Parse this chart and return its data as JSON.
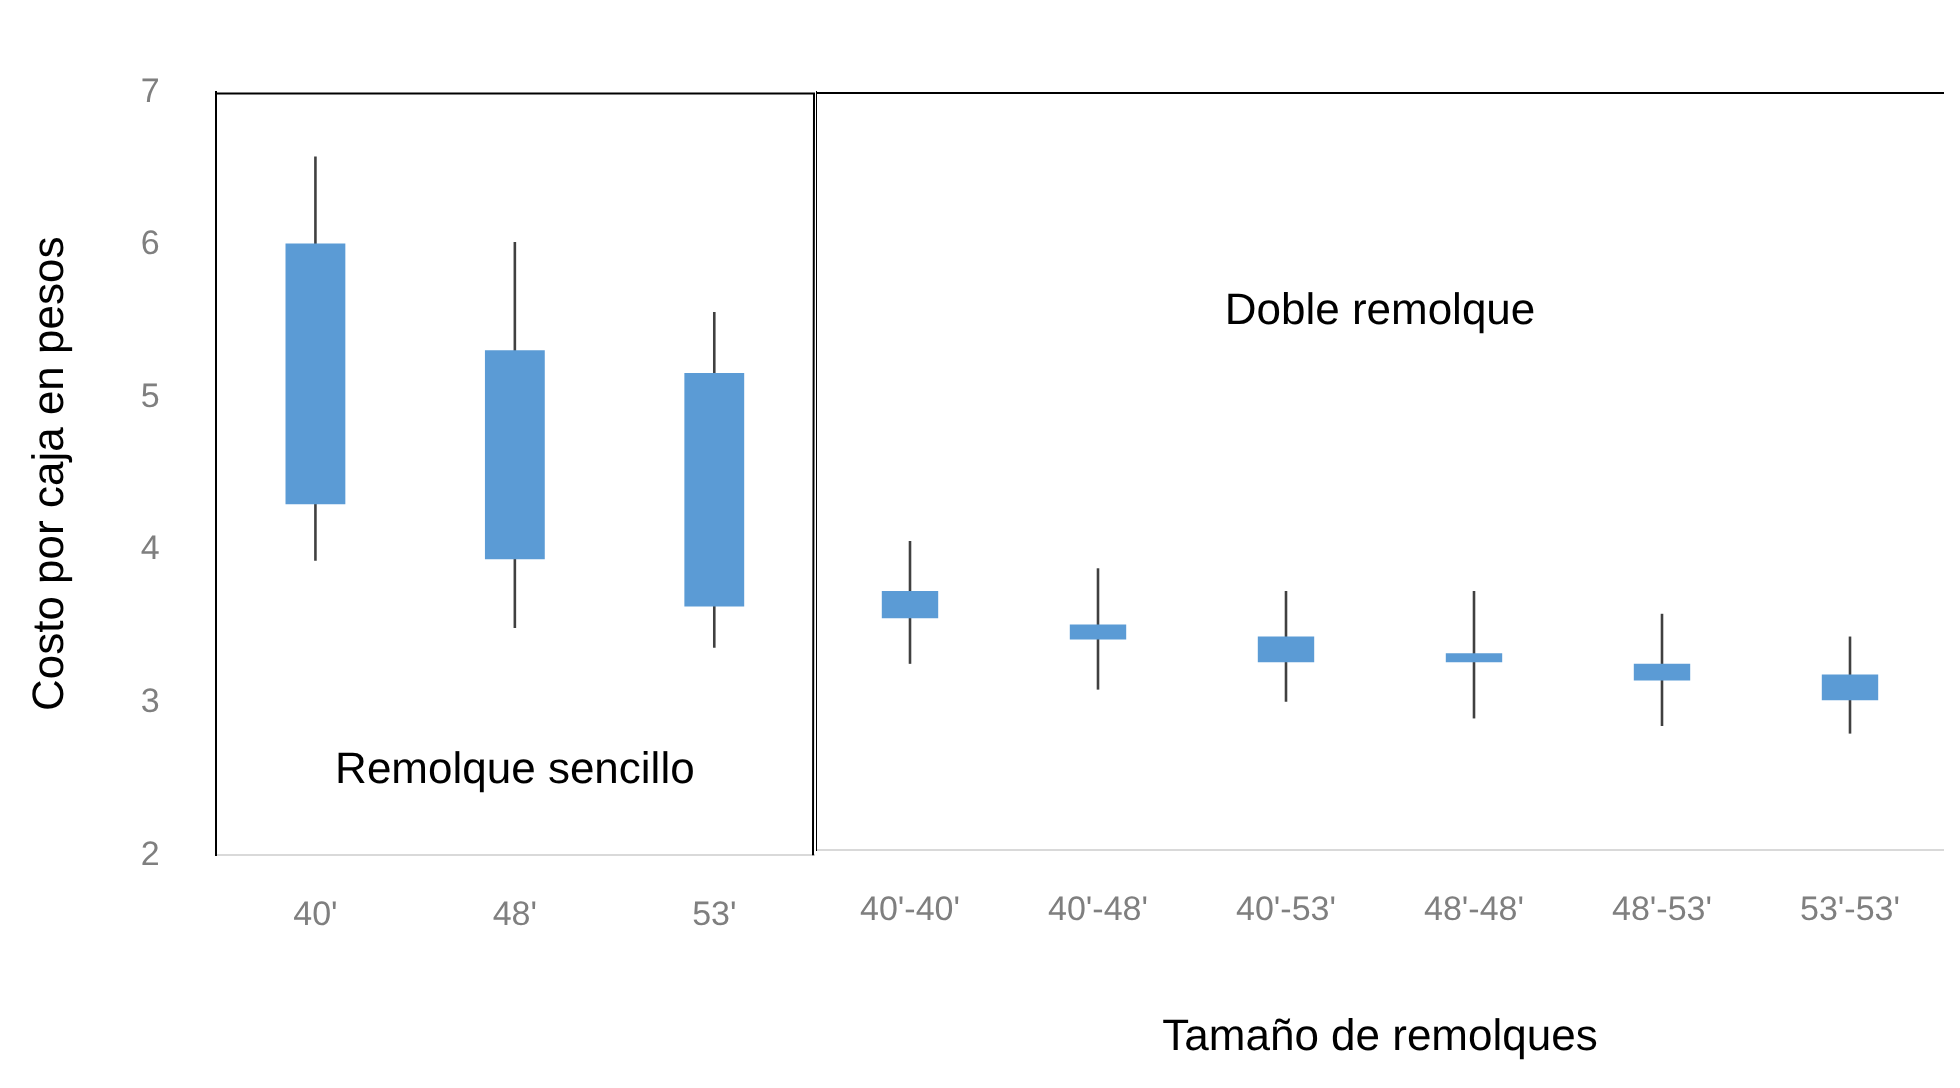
{
  "chart_data": [
    {
      "type": "candlestick",
      "ylabel": "Costo por caja en pesos",
      "categories": [
        "40'",
        "48'",
        "53'"
      ],
      "ohlc": [
        [
          4.3,
          6.58,
          3.93,
          6.01
        ],
        [
          3.94,
          6.02,
          3.49,
          5.31
        ],
        [
          3.63,
          5.56,
          3.36,
          5.16
        ]
      ],
      "color": "#5b9bd5",
      "ylim": [
        2,
        7
      ],
      "yticks": [
        2,
        3,
        4,
        5,
        6,
        7
      ],
      "grid": false,
      "legend": false,
      "annotations": [
        "Remolque sencillo"
      ]
    },
    {
      "type": "candlestick",
      "xlabel": "Tamaño de remolques",
      "categories": [
        "40'-40'",
        "40'-48'",
        "40'-53'",
        "48'-48'",
        "48'-53'",
        "53'-53'"
      ],
      "ohlc": [
        [
          3.53,
          4.04,
          3.23,
          3.71
        ],
        [
          3.39,
          3.86,
          3.06,
          3.49
        ],
        [
          3.24,
          3.71,
          2.98,
          3.41
        ],
        [
          3.24,
          3.71,
          2.87,
          3.3
        ],
        [
          3.12,
          3.56,
          2.82,
          3.23
        ],
        [
          2.99,
          3.41,
          2.77,
          3.16
        ]
      ],
      "color": "#5b9bd5",
      "ylim": [
        2,
        7
      ],
      "yticks": [
        2,
        3,
        4,
        5,
        6,
        7
      ],
      "grid": false,
      "legend": false,
      "tick_labels": "x",
      "annotations": [
        "Doble remolque"
      ]
    }
  ]
}
